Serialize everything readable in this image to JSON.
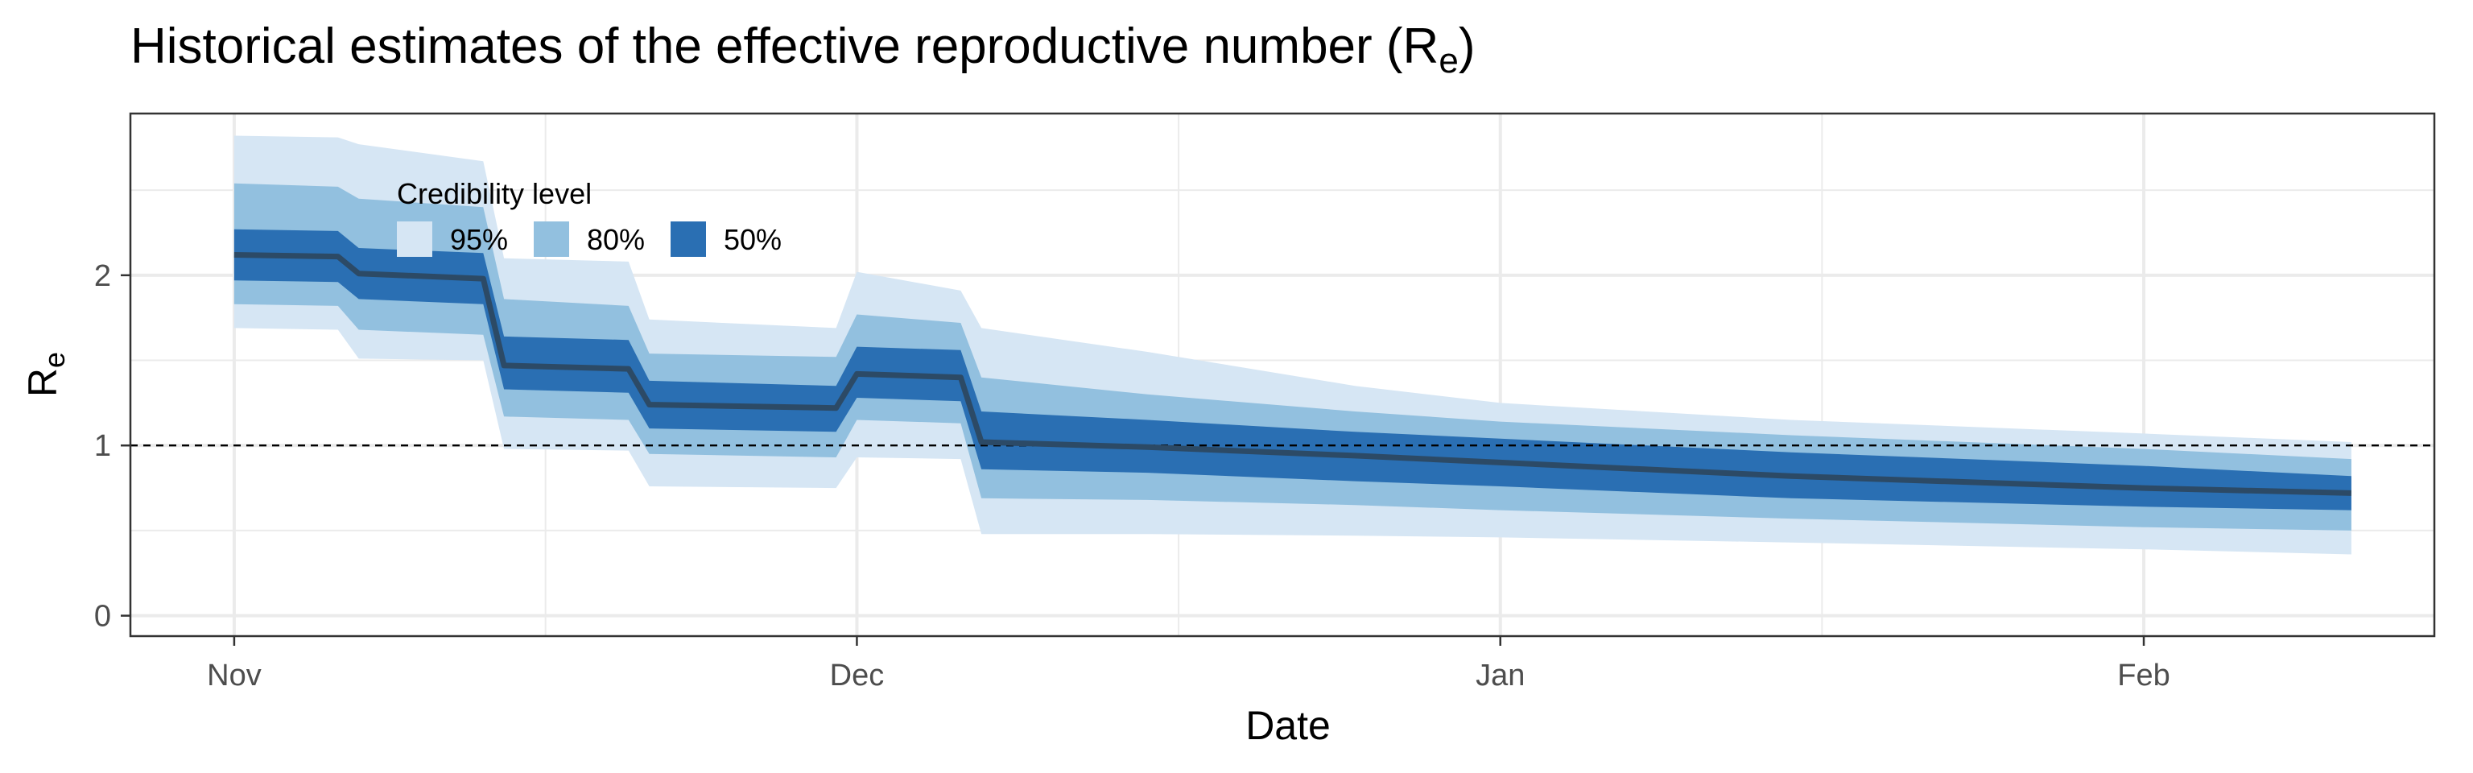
{
  "chart_data": {
    "type": "area",
    "title": "Historical estimates of the effective reproductive number (R",
    "title_subscript": "e",
    "title_suffix": ")",
    "xlabel": "Date",
    "ylabel": "R",
    "ylabel_subscript": "e",
    "x_ticks": [
      "2020-11-01",
      "2020-12-01",
      "2021-01-01",
      "2021-02-01"
    ],
    "x_tick_labels": [
      "Nov",
      "Dec",
      "Jan",
      "Feb"
    ],
    "y_ticks": [
      0,
      1,
      2
    ],
    "y_tick_labels": [
      "0",
      "1",
      "2"
    ],
    "xlim": [
      "2020-10-27",
      "2021-02-15"
    ],
    "ylim": [
      -0.12,
      2.95
    ],
    "reference_line": {
      "y": 1,
      "style": "dashed"
    },
    "grid": true,
    "legend": {
      "title": "Credibility level",
      "placement": "top-left",
      "items": [
        {
          "label": "95%",
          "color": "#d6e6f4"
        },
        {
          "label": "80%",
          "color": "#92c0df"
        },
        {
          "label": "50%",
          "color": "#2a6fb3"
        }
      ]
    },
    "line_color": "#2c4a66",
    "x": [
      "2020-11-01",
      "2020-11-06",
      "2020-11-07",
      "2020-11-13",
      "2020-11-14",
      "2020-11-20",
      "2020-11-21",
      "2020-11-30",
      "2020-12-01",
      "2020-12-06",
      "2020-12-07",
      "2020-12-15",
      "2020-12-25",
      "2021-01-01",
      "2021-01-15",
      "2021-02-01",
      "2021-02-11"
    ],
    "series": [
      {
        "name": "median",
        "values": [
          2.12,
          2.11,
          2.01,
          1.98,
          1.47,
          1.45,
          1.24,
          1.22,
          1.42,
          1.4,
          1.02,
          0.99,
          0.94,
          0.9,
          0.82,
          0.75,
          0.72
        ]
      },
      {
        "name": "50% lower",
        "values": [
          1.97,
          1.96,
          1.86,
          1.83,
          1.33,
          1.31,
          1.1,
          1.08,
          1.28,
          1.26,
          0.86,
          0.84,
          0.79,
          0.76,
          0.69,
          0.64,
          0.62
        ]
      },
      {
        "name": "50% upper",
        "values": [
          2.27,
          2.26,
          2.16,
          2.13,
          1.64,
          1.62,
          1.38,
          1.35,
          1.58,
          1.56,
          1.2,
          1.15,
          1.08,
          1.04,
          0.96,
          0.88,
          0.82
        ]
      },
      {
        "name": "80% lower",
        "values": [
          1.83,
          1.82,
          1.68,
          1.65,
          1.17,
          1.15,
          0.95,
          0.93,
          1.15,
          1.13,
          0.69,
          0.68,
          0.65,
          0.62,
          0.57,
          0.52,
          0.5
        ]
      },
      {
        "name": "80% upper",
        "values": [
          2.54,
          2.52,
          2.45,
          2.4,
          1.86,
          1.82,
          1.54,
          1.52,
          1.77,
          1.72,
          1.4,
          1.3,
          1.2,
          1.14,
          1.06,
          0.98,
          0.92
        ]
      },
      {
        "name": "95% lower",
        "values": [
          1.69,
          1.68,
          1.51,
          1.5,
          0.98,
          0.97,
          0.76,
          0.75,
          0.93,
          0.92,
          0.48,
          0.48,
          0.47,
          0.46,
          0.43,
          0.39,
          0.36
        ]
      },
      {
        "name": "95% upper",
        "values": [
          2.82,
          2.81,
          2.77,
          2.67,
          2.1,
          2.08,
          1.74,
          1.69,
          2.02,
          1.91,
          1.69,
          1.55,
          1.35,
          1.25,
          1.15,
          1.07,
          1.02
        ]
      }
    ]
  }
}
